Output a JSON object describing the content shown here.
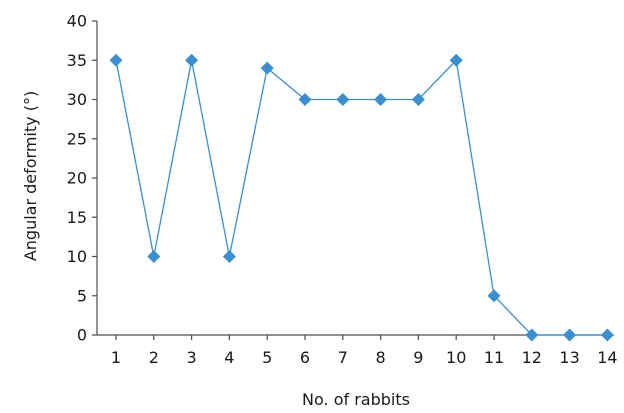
{
  "chart_data": {
    "type": "line",
    "xlabel": "No. of rabbits",
    "ylabel": "Angular deformity (°)",
    "categories": [
      "1",
      "2",
      "3",
      "4",
      "5",
      "6",
      "7",
      "8",
      "9",
      "10",
      "11",
      "12",
      "13",
      "14"
    ],
    "series": [
      {
        "values": [
          35,
          10,
          35,
          10,
          34,
          30,
          30,
          30,
          30,
          35,
          5,
          0,
          0,
          0
        ],
        "color": "#3a8fd1",
        "marker": "diamond"
      }
    ],
    "ylim": [
      0,
      40
    ],
    "yticks": [
      0,
      5,
      10,
      15,
      20,
      25,
      30,
      35,
      40
    ],
    "grid": false,
    "legend": "none"
  }
}
